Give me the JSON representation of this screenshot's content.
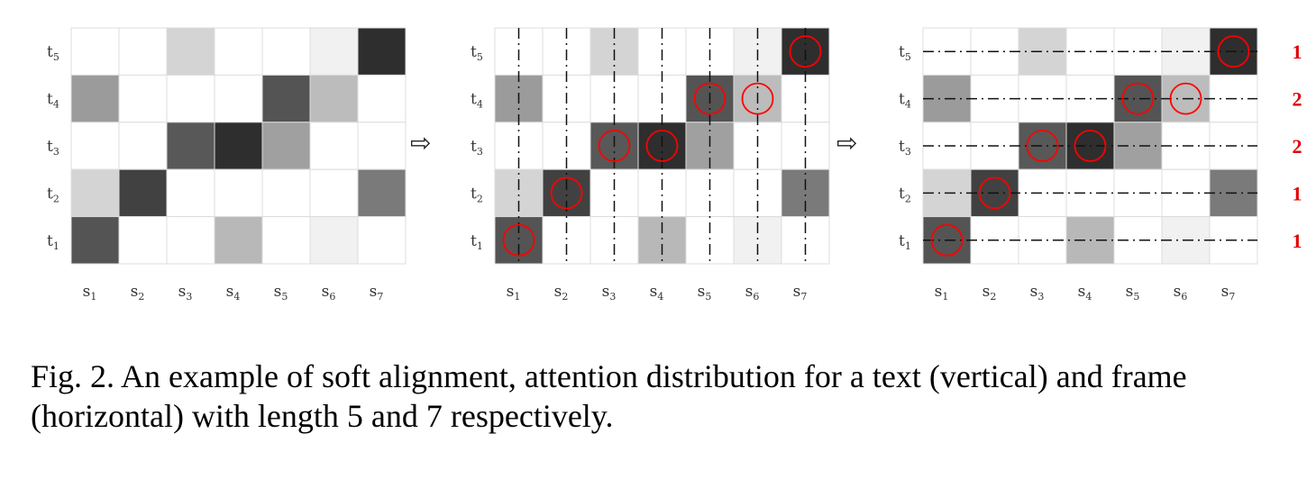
{
  "figure": {
    "text_labels": [
      {
        "base": "t",
        "sub": "5"
      },
      {
        "base": "t",
        "sub": "4"
      },
      {
        "base": "t",
        "sub": "3"
      },
      {
        "base": "t",
        "sub": "2"
      },
      {
        "base": "t",
        "sub": "1"
      }
    ],
    "frame_labels": [
      {
        "base": "s",
        "sub": "1"
      },
      {
        "base": "s",
        "sub": "2"
      },
      {
        "base": "s",
        "sub": "3"
      },
      {
        "base": "s",
        "sub": "4"
      },
      {
        "base": "s",
        "sub": "5"
      },
      {
        "base": "s",
        "sub": "6"
      },
      {
        "base": "s",
        "sub": "7"
      }
    ],
    "attention_intensity": [
      [
        0.0,
        0.0,
        0.18,
        0.0,
        0.0,
        0.06,
        0.88
      ],
      [
        0.42,
        0.0,
        0.0,
        0.0,
        0.72,
        0.28,
        0.0
      ],
      [
        0.0,
        0.0,
        0.7,
        0.88,
        0.4,
        0.0,
        0.0
      ],
      [
        0.18,
        0.8,
        0.0,
        0.0,
        0.0,
        0.0,
        0.56
      ],
      [
        0.72,
        0.0,
        0.0,
        0.3,
        0.0,
        0.06,
        0.0
      ]
    ],
    "panels": [
      {
        "name": "original",
        "lines": "none"
      },
      {
        "name": "column-max",
        "lines": "vertical"
      },
      {
        "name": "row-count",
        "lines": "horizontal"
      }
    ],
    "column_maxima": [
      4,
      3,
      2,
      2,
      1,
      1,
      0
    ],
    "row_counts": [
      "1",
      "2",
      "2",
      "1",
      "1"
    ],
    "arrow_symbol": "⇨",
    "colors": {
      "highlight": "#ff0000",
      "count": "#e00000",
      "cell_border": "#dcdcdc"
    }
  },
  "caption": {
    "text": "Fig. 2.  An example of soft alignment, attention distribution for a text (vertical) and frame (horizontal) with length 5 and 7 respectively."
  }
}
